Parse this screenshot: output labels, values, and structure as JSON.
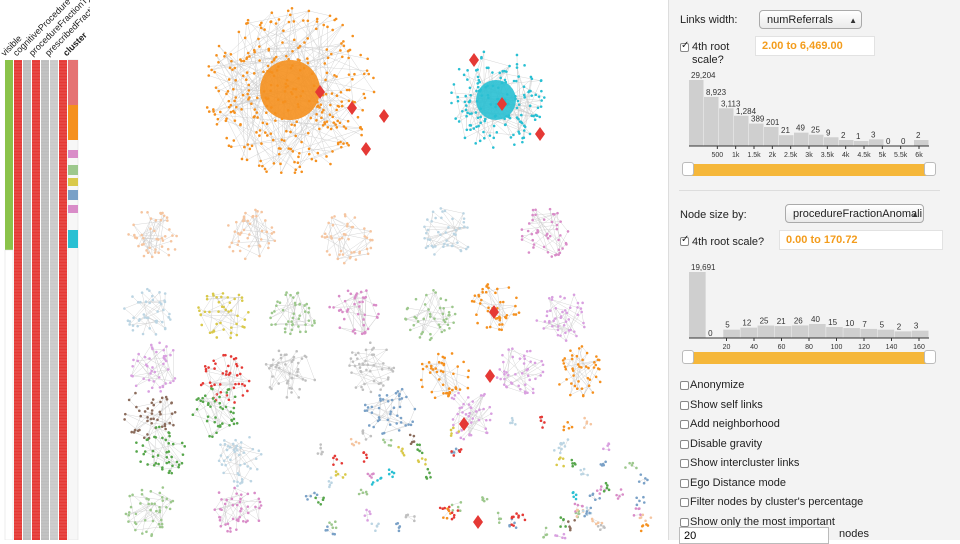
{
  "sidebar": {
    "column_headers": [
      "visible",
      "cognitiveProcedure",
      "procedureFractionType",
      "prescribedFractionAnomale",
      "cluster"
    ],
    "colors": [
      "#8bc34a",
      "#ffffff",
      "#e53935",
      "#bdbdbd",
      "#e53935",
      "#f3a21c"
    ]
  },
  "graph": {
    "cluster_colors": [
      "#f5901e",
      "#29c0d3",
      "#f5c5a0",
      "#bcd5e3",
      "#d98cc8",
      "#9dc88d",
      "#d9c94a",
      "#c0c0c0",
      "#e53935",
      "#56a64b",
      "#8b6c5c",
      "#d9a0e0",
      "#7aa1c7"
    ]
  },
  "panel": {
    "links_width": {
      "label": "Links width:",
      "selected": "numReferrals",
      "scale_label": "4th root scale?",
      "scale_checked": true,
      "range": "2.00 to 6,469.00",
      "histogram": {
        "counts": [
          "29,204",
          "8,923",
          "3,113",
          "1,284",
          "389",
          "201",
          "21",
          "49",
          "25",
          "9",
          "2",
          "1",
          "3",
          "0",
          "0",
          "2"
        ],
        "values": [
          29204,
          8923,
          3113,
          1284,
          389,
          201,
          21,
          49,
          25,
          9,
          2,
          1,
          3,
          0,
          0,
          2
        ],
        "ticks": [
          "500",
          "1k",
          "1.5k",
          "2k",
          "2.5k",
          "3k",
          "3.5k",
          "4k",
          "4.5k",
          "5k",
          "5.5k",
          "6k"
        ]
      }
    },
    "node_size": {
      "label": "Node size by:",
      "selected": "procedureFractionAnomali",
      "scale_label": "4th root scale?",
      "scale_checked": true,
      "range": "0.00 to 170.72",
      "histogram": {
        "counts": [
          "19,691",
          "0",
          "5",
          "12",
          "25",
          "21",
          "26",
          "40",
          "15",
          "10",
          "7",
          "5",
          "2",
          "3"
        ],
        "values": [
          19691,
          0,
          5,
          12,
          25,
          21,
          26,
          40,
          15,
          10,
          7,
          5,
          2,
          3
        ],
        "ticks": [
          "20",
          "40",
          "60",
          "80",
          "100",
          "120",
          "140",
          "160"
        ]
      }
    },
    "options": [
      {
        "label": "Anonymize",
        "checked": false
      },
      {
        "label": "Show self links",
        "checked": false
      },
      {
        "label": "Add neighborhood",
        "checked": false
      },
      {
        "label": "Disable gravity",
        "checked": false
      },
      {
        "label": "Show intercluster links",
        "checked": false
      },
      {
        "label": "Ego Distance mode",
        "checked": false
      },
      {
        "label": "Filter nodes by cluster's percentage",
        "checked": false
      },
      {
        "label": "Show only the most important",
        "checked": false
      }
    ],
    "top_n": {
      "value": "20",
      "suffix": "nodes"
    }
  }
}
